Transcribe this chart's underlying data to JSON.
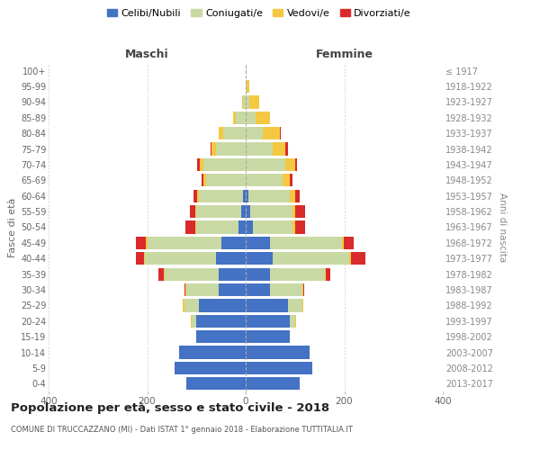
{
  "age_groups": [
    "0-4",
    "5-9",
    "10-14",
    "15-19",
    "20-24",
    "25-29",
    "30-34",
    "35-39",
    "40-44",
    "45-49",
    "50-54",
    "55-59",
    "60-64",
    "65-69",
    "70-74",
    "75-79",
    "80-84",
    "85-89",
    "90-94",
    "95-99",
    "100+"
  ],
  "birth_years": [
    "2013-2017",
    "2008-2012",
    "2003-2007",
    "1998-2002",
    "1993-1997",
    "1988-1992",
    "1983-1987",
    "1978-1982",
    "1973-1977",
    "1968-1972",
    "1963-1967",
    "1958-1962",
    "1953-1957",
    "1948-1952",
    "1943-1947",
    "1938-1942",
    "1933-1937",
    "1928-1932",
    "1923-1927",
    "1918-1922",
    "≤ 1917"
  ],
  "males": {
    "celibi": [
      120,
      145,
      135,
      100,
      100,
      95,
      55,
      55,
      60,
      50,
      15,
      10,
      5,
      0,
      0,
      0,
      0,
      0,
      0,
      0,
      0
    ],
    "coniugati": [
      0,
      0,
      0,
      0,
      10,
      30,
      65,
      110,
      145,
      150,
      85,
      90,
      90,
      80,
      85,
      60,
      45,
      20,
      5,
      0,
      0
    ],
    "vedovi": [
      0,
      0,
      0,
      0,
      2,
      2,
      2,
      2,
      2,
      2,
      2,
      2,
      3,
      5,
      8,
      10,
      10,
      5,
      2,
      0,
      0
    ],
    "divorziati": [
      0,
      0,
      0,
      0,
      0,
      0,
      2,
      10,
      15,
      20,
      20,
      12,
      8,
      5,
      5,
      2,
      0,
      0,
      0,
      0,
      0
    ]
  },
  "females": {
    "nubili": [
      110,
      135,
      130,
      90,
      90,
      85,
      50,
      50,
      55,
      50,
      15,
      10,
      5,
      0,
      0,
      0,
      0,
      0,
      0,
      0,
      0
    ],
    "coniugate": [
      0,
      0,
      0,
      0,
      10,
      30,
      65,
      110,
      155,
      145,
      80,
      85,
      85,
      75,
      80,
      55,
      35,
      20,
      8,
      2,
      0
    ],
    "vedove": [
      0,
      0,
      0,
      0,
      2,
      2,
      2,
      2,
      3,
      4,
      5,
      5,
      10,
      15,
      20,
      25,
      35,
      30,
      20,
      5,
      0
    ],
    "divorziate": [
      0,
      0,
      0,
      0,
      0,
      0,
      2,
      10,
      30,
      20,
      20,
      20,
      10,
      5,
      5,
      5,
      2,
      0,
      0,
      0,
      0
    ]
  },
  "colors": {
    "celibi": "#4472C4",
    "coniugati": "#C8D9A4",
    "vedovi": "#F5C842",
    "divorziati": "#D92B2B"
  },
  "title": "Popolazione per età, sesso e stato civile - 2018",
  "subtitle": "COMUNE DI TRUCCAZZANO (MI) - Dati ISTAT 1° gennaio 2018 - Elaborazione TUTTITALIA.IT",
  "maschi_label": "Maschi",
  "femmine_label": "Femmine",
  "ylabel_left": "Fasce di età",
  "ylabel_right": "Anni di nascita",
  "xlim": 400,
  "legend_labels": [
    "Celibi/Nubili",
    "Coniugati/e",
    "Vedovi/e",
    "Divorziati/e"
  ],
  "bg_color": "#FFFFFF",
  "grid_color": "#CCCCCC"
}
